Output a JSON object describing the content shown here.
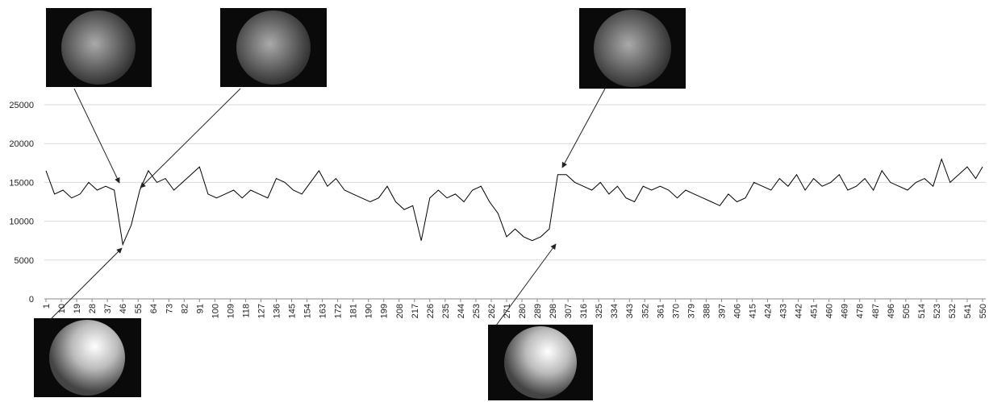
{
  "chart_data": {
    "type": "line",
    "x": [
      1,
      6,
      11,
      16,
      21,
      26,
      31,
      36,
      41,
      46,
      51,
      56,
      61,
      66,
      71,
      76,
      81,
      86,
      91,
      96,
      101,
      106,
      111,
      116,
      121,
      126,
      131,
      136,
      141,
      146,
      151,
      156,
      161,
      166,
      171,
      176,
      181,
      186,
      191,
      196,
      201,
      206,
      211,
      216,
      221,
      226,
      231,
      236,
      241,
      246,
      251,
      256,
      261,
      266,
      271,
      276,
      281,
      286,
      291,
      296,
      301,
      306,
      311,
      316,
      321,
      326,
      331,
      336,
      341,
      346,
      351,
      356,
      361,
      366,
      371,
      376,
      381,
      386,
      391,
      396,
      401,
      406,
      411,
      416,
      421,
      426,
      431,
      436,
      441,
      446,
      451,
      456,
      461,
      466,
      471,
      476,
      481,
      486,
      491,
      496,
      501,
      506,
      511,
      516,
      521,
      526,
      531,
      536,
      541,
      546,
      550
    ],
    "values": [
      16500,
      13500,
      14000,
      13000,
      13500,
      15000,
      14000,
      14500,
      14000,
      7000,
      9500,
      14000,
      16500,
      15000,
      15500,
      14000,
      15000,
      16000,
      17000,
      13500,
      13000,
      13500,
      14000,
      13000,
      14000,
      13500,
      13000,
      15500,
      15000,
      14000,
      13500,
      15000,
      16500,
      14500,
      15500,
      14000,
      13500,
      13000,
      12500,
      13000,
      14500,
      12500,
      11500,
      12000,
      7500,
      13000,
      14000,
      13000,
      13500,
      12500,
      14000,
      14500,
      12500,
      11000,
      8000,
      9000,
      8000,
      7500,
      8000,
      9000,
      16000,
      16000,
      15000,
      14500,
      14000,
      15000,
      13500,
      14500,
      13000,
      12500,
      14500,
      14000,
      14500,
      14000,
      13000,
      14000,
      13500,
      13000,
      12500,
      12000,
      13500,
      12500,
      13000,
      15000,
      14500,
      14000,
      15500,
      14500,
      16000,
      14000,
      15500,
      14500,
      15000,
      16000,
      14000,
      14500,
      15500,
      14000,
      16500,
      15000,
      14500,
      14000,
      15000,
      15500,
      14500,
      18000,
      15000,
      16000,
      17000,
      15500,
      17000
    ],
    "color": "#000000",
    "xlim": [
      1,
      550
    ],
    "xticks": [
      1,
      10,
      19,
      28,
      37,
      46,
      55,
      64,
      73,
      82,
      91,
      100,
      109,
      118,
      127,
      136,
      145,
      154,
      163,
      172,
      181,
      190,
      199,
      208,
      217,
      226,
      235,
      244,
      253,
      262,
      271,
      280,
      289,
      298,
      307,
      316,
      325,
      334,
      343,
      352,
      361,
      370,
      379,
      388,
      397,
      406,
      415,
      424,
      433,
      442,
      451,
      460,
      469,
      478,
      487,
      496,
      505,
      514,
      523,
      532,
      541,
      550
    ],
    "ylim": [
      0,
      25000
    ],
    "yticks": [
      0,
      5000,
      10000,
      15000,
      20000,
      25000
    ],
    "grid": true
  }
}
